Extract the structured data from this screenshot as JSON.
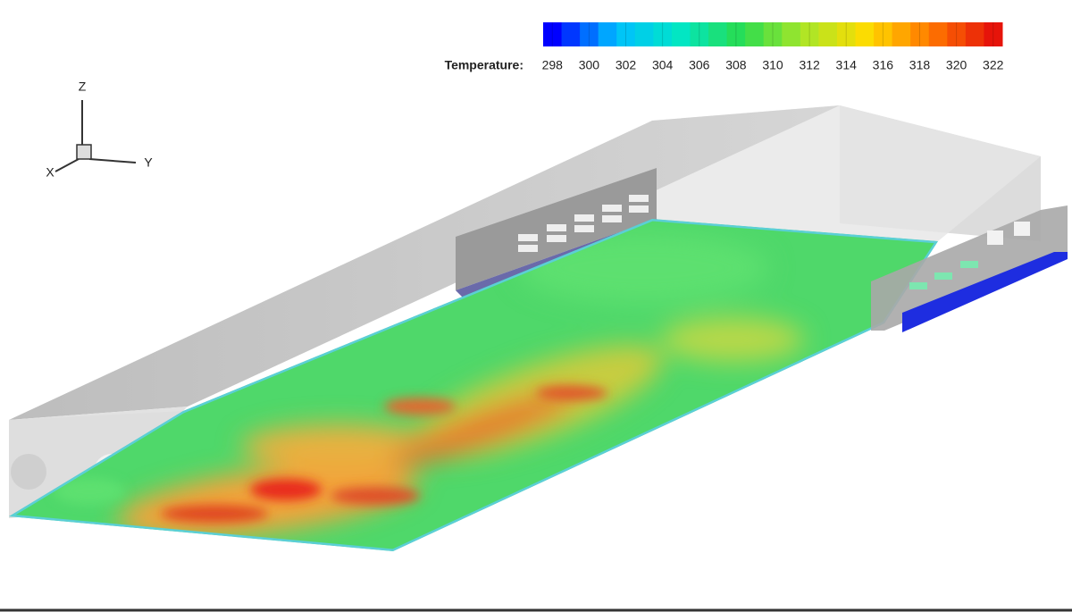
{
  "legend": {
    "title": "Temperature:",
    "ticks": [
      298,
      300,
      302,
      304,
      306,
      308,
      310,
      312,
      314,
      316,
      318,
      320,
      322
    ]
  },
  "axes": {
    "z": "Z",
    "x": "X",
    "y": "Y"
  }
}
